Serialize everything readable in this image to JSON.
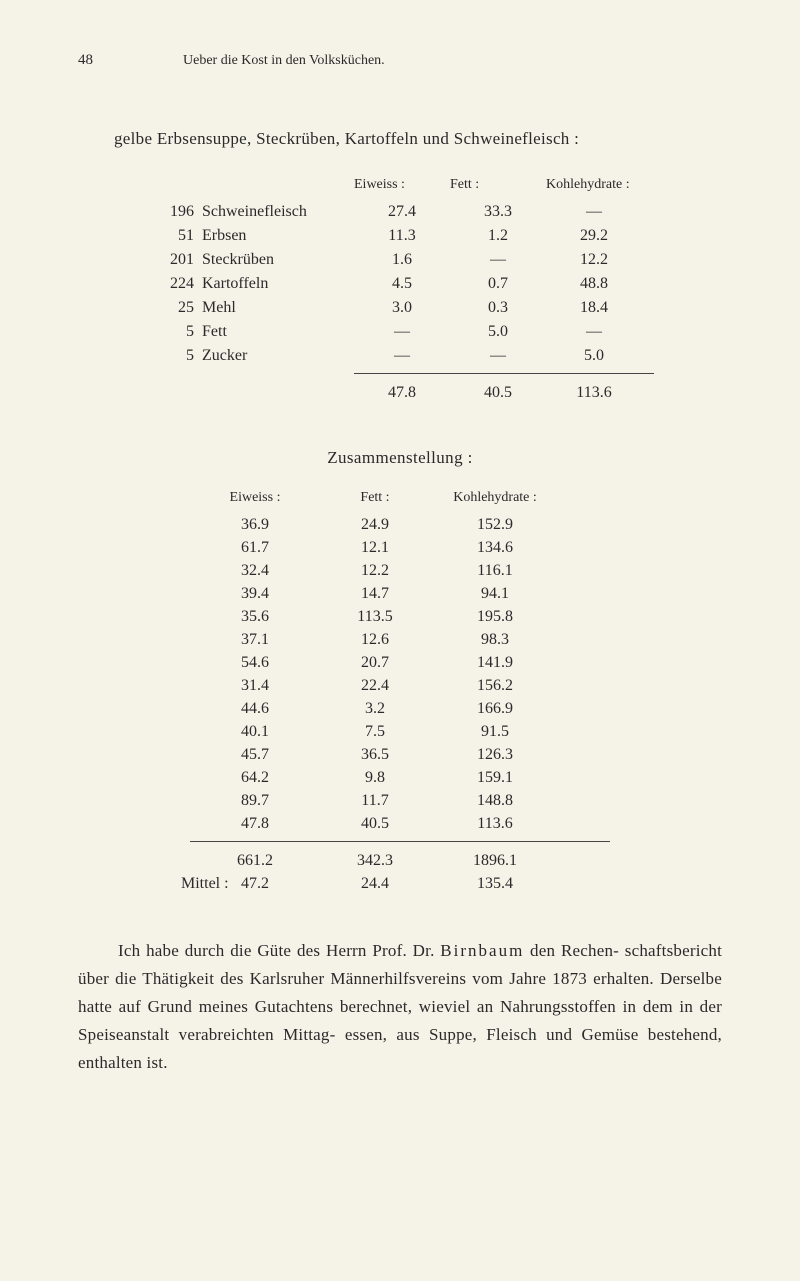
{
  "background_color": "#f5f2e8",
  "text_color": "#2a2a2a",
  "page_number": "48",
  "chapter_title": "Ueber die Kost in den Volksküchen.",
  "intro_text": "gelbe Erbsensuppe, Steckrüben, Kartoffeln und Schweinefleisch :",
  "table1": {
    "headers": {
      "eiweiss": "Eiweiss :",
      "fett": "Fett :",
      "kohlehydrate": "Kohlehydrate :"
    },
    "rows": [
      {
        "qty": "196",
        "item": "Schweinefleisch",
        "eiweiss": "27.4",
        "fett": "33.3",
        "koh": "—"
      },
      {
        "qty": "51",
        "item": "Erbsen",
        "eiweiss": "11.3",
        "fett": "1.2",
        "koh": "29.2"
      },
      {
        "qty": "201",
        "item": "Steckrüben",
        "eiweiss": "1.6",
        "fett": "—",
        "koh": "12.2"
      },
      {
        "qty": "224",
        "item": "Kartoffeln",
        "eiweiss": "4.5",
        "fett": "0.7",
        "koh": "48.8"
      },
      {
        "qty": "25",
        "item": "Mehl",
        "eiweiss": "3.0",
        "fett": "0.3",
        "koh": "18.4"
      },
      {
        "qty": "5",
        "item": "Fett",
        "eiweiss": "—",
        "fett": "5.0",
        "koh": "—"
      },
      {
        "qty": "5",
        "item": "Zucker",
        "eiweiss": "—",
        "fett": "—",
        "koh": "5.0"
      }
    ],
    "totals": {
      "eiweiss": "47.8",
      "fett": "40.5",
      "koh": "113.6"
    }
  },
  "section_heading": "Zusammenstellung :",
  "table2": {
    "headers": {
      "eiweiss": "Eiweiss :",
      "fett": "Fett :",
      "kohlehydrate": "Kohlehydrate :"
    },
    "rows": [
      {
        "eiweiss": "36.9",
        "fett": "24.9",
        "koh": "152.9"
      },
      {
        "eiweiss": "61.7",
        "fett": "12.1",
        "koh": "134.6"
      },
      {
        "eiweiss": "32.4",
        "fett": "12.2",
        "koh": "116.1"
      },
      {
        "eiweiss": "39.4",
        "fett": "14.7",
        "koh": "94.1"
      },
      {
        "eiweiss": "35.6",
        "fett": "113.5",
        "koh": "195.8"
      },
      {
        "eiweiss": "37.1",
        "fett": "12.6",
        "koh": "98.3"
      },
      {
        "eiweiss": "54.6",
        "fett": "20.7",
        "koh": "141.9"
      },
      {
        "eiweiss": "31.4",
        "fett": "22.4",
        "koh": "156.2"
      },
      {
        "eiweiss": "44.6",
        "fett": "3.2",
        "koh": "166.9"
      },
      {
        "eiweiss": "40.1",
        "fett": "7.5",
        "koh": "91.5"
      },
      {
        "eiweiss": "45.7",
        "fett": "36.5",
        "koh": "126.3"
      },
      {
        "eiweiss": "64.2",
        "fett": "9.8",
        "koh": "159.1"
      },
      {
        "eiweiss": "89.7",
        "fett": "11.7",
        "koh": "148.8"
      },
      {
        "eiweiss": "47.8",
        "fett": "40.5",
        "koh": "113.6"
      }
    ],
    "totals": {
      "eiweiss": "661.2",
      "fett": "342.3",
      "koh": "1896.1"
    },
    "mittel_label": "Mittel :",
    "mittel": {
      "eiweiss": "47.2",
      "fett": "24.4",
      "koh": "135.4"
    }
  },
  "paragraph": {
    "line1_pre": "Ich habe durch die Güte des Herrn Prof. Dr. ",
    "line1_spaced": "Birnbaum",
    "line1_post": " den Rechen-",
    "line2": "schaftsbericht über die Thätigkeit des Karlsruher Männerhilfsvereins vom Jahre 1873 erhalten. Derselbe hatte auf Grund meines Gutachtens berechnet, wieviel an Nahrungsstoffen in dem in der Speiseanstalt verabreichten Mittag-",
    "line3": "essen, aus Suppe, Fleisch und Gemüse bestehend, enthalten ist."
  }
}
